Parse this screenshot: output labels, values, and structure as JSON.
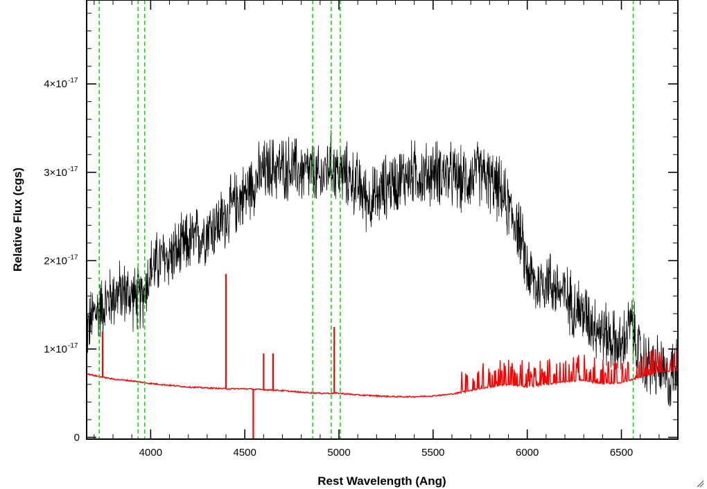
{
  "chart_data": {
    "type": "line",
    "xlabel": "Rest Wavelength (Ang)",
    "ylabel": "Relative Flux (cgs)",
    "xlim": [
      3660,
      6800
    ],
    "ylim": [
      -2e-19,
      4.95e-17
    ],
    "x_ticks": [
      {
        "value": 4000,
        "label": "4000"
      },
      {
        "value": 4500,
        "label": "4500"
      },
      {
        "value": 5000,
        "label": "5000"
      },
      {
        "value": 5500,
        "label": "5500"
      },
      {
        "value": 6000,
        "label": "6000"
      },
      {
        "value": 6500,
        "label": "6500"
      }
    ],
    "y_ticks": [
      {
        "value": 0,
        "mantissa": "0",
        "exponent": ""
      },
      {
        "value": 1e-17,
        "mantissa": "1×10",
        "exponent": "-17"
      },
      {
        "value": 2e-17,
        "mantissa": "2×10",
        "exponent": "-17"
      },
      {
        "value": 3e-17,
        "mantissa": "3×10",
        "exponent": "-17"
      },
      {
        "value": 4e-17,
        "mantissa": "4×10",
        "exponent": "-17"
      }
    ],
    "grid": false,
    "series": [
      {
        "role": "spectrum",
        "color": "#000000",
        "x": [
          3660,
          3700,
          3750,
          3800,
          3850,
          3900,
          3950,
          4000,
          4050,
          4100,
          4150,
          4200,
          4250,
          4300,
          4350,
          4400,
          4450,
          4500,
          4550,
          4600,
          4650,
          4700,
          4750,
          4800,
          4850,
          4900,
          4950,
          5000,
          5050,
          5100,
          5150,
          5200,
          5250,
          5300,
          5350,
          5400,
          5450,
          5500,
          5550,
          5600,
          5650,
          5700,
          5750,
          5800,
          5850,
          5900,
          5950,
          6000,
          6050,
          6100,
          6150,
          6200,
          6250,
          6300,
          6350,
          6400,
          6450,
          6500,
          6550,
          6600,
          6650,
          6700,
          6750,
          6800
        ],
        "y": [
          1.2e-17,
          1.4e-17,
          1.5e-17,
          1.6e-17,
          1.65e-17,
          1.6e-17,
          1.55e-17,
          1.9e-17,
          2e-17,
          2.05e-17,
          2.1e-17,
          2.2e-17,
          2.25e-17,
          2.35e-17,
          2.4e-17,
          2.5e-17,
          2.65e-17,
          2.75e-17,
          2.9e-17,
          3e-17,
          3.05e-17,
          3.05e-17,
          3.05e-17,
          3e-17,
          3e-17,
          2.9e-17,
          3.1e-17,
          3e-17,
          2.95e-17,
          2.85e-17,
          2.7e-17,
          2.7e-17,
          2.85e-17,
          2.9e-17,
          2.95e-17,
          3e-17,
          2.95e-17,
          3e-17,
          3e-17,
          2.95e-17,
          2.9e-17,
          2.95e-17,
          3e-17,
          2.9e-17,
          2.8e-17,
          2.6e-17,
          2.4e-17,
          1.9e-17,
          1.7e-17,
          1.8e-17,
          1.7e-17,
          1.6e-17,
          1.5e-17,
          1.4e-17,
          1.3e-17,
          1.2e-17,
          1.1e-17,
          1e-17,
          1.3e-17,
          9e-18,
          8e-18,
          8e-18,
          6e-18,
          9e-18
        ]
      },
      {
        "role": "error",
        "color": "#ff0000",
        "x": [
          3660,
          3700,
          3800,
          3900,
          4000,
          4100,
          4200,
          4300,
          4400,
          4500,
          4600,
          4700,
          4800,
          4900,
          5000,
          5100,
          5200,
          5300,
          5400,
          5500,
          5600,
          5700,
          5800,
          5900,
          6000,
          6100,
          6200,
          6300,
          6400,
          6500,
          6600,
          6700,
          6800
        ],
        "y": [
          7.2e-18,
          7e-18,
          6.6e-18,
          6.4e-18,
          6.1e-18,
          5.9e-18,
          5.7e-18,
          5.6e-18,
          5.5e-18,
          5.5e-18,
          5.4e-18,
          5.3e-18,
          5.1e-18,
          5e-18,
          5e-18,
          4.8e-18,
          4.7e-18,
          4.6e-18,
          4.6e-18,
          4.7e-18,
          4.9e-18,
          5.3e-18,
          5.7e-18,
          6e-18,
          5.7e-18,
          6e-18,
          6.3e-18,
          6.5e-18,
          6e-18,
          6.2e-18,
          6.8e-18,
          7.4e-18,
          7.6e-18
        ],
        "spikes": [
          {
            "x": 3745,
            "top": 1.2e-17
          },
          {
            "x": 4400,
            "top": 1.85e-17
          },
          {
            "x": 4545,
            "top": -5e-19
          },
          {
            "x": 4600,
            "top": 9.5e-18
          },
          {
            "x": 4650,
            "top": 9.5e-18
          },
          {
            "x": 4975,
            "top": 1.25e-17
          }
        ]
      }
    ],
    "reference_lines": {
      "color": "#00dd00",
      "style": "dashed",
      "x": [
        3727,
        3933,
        3968,
        4861,
        4959,
        5007,
        6563
      ]
    }
  }
}
